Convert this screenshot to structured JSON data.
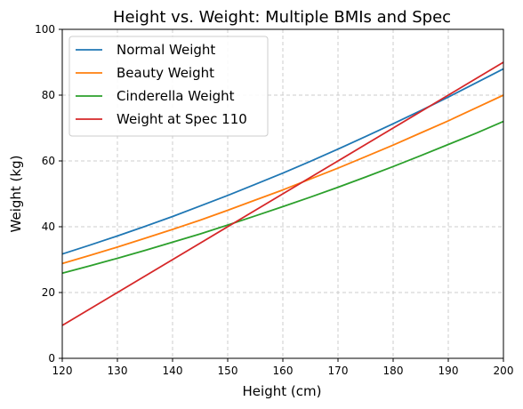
{
  "chart_data": {
    "type": "line",
    "title": "Height vs. Weight: Multiple BMIs and Spec",
    "xlabel": "Height (cm)",
    "ylabel": "Weight (kg)",
    "xlim": [
      120,
      200
    ],
    "ylim": [
      0,
      100
    ],
    "xticks": [
      "120",
      "130",
      "140",
      "150",
      "160",
      "170",
      "180",
      "190",
      "200"
    ],
    "yticks": [
      "0",
      "20",
      "40",
      "60",
      "80",
      "100"
    ],
    "grid": true,
    "legend_position": "top-left",
    "x": [
      120,
      125,
      130,
      135,
      140,
      145,
      150,
      155,
      160,
      165,
      170,
      175,
      180,
      185,
      190,
      195,
      200
    ],
    "series": [
      {
        "name": "Normal Weight",
        "color": "#1f77b4",
        "values": [
          31.7,
          34.4,
          37.2,
          40.1,
          43.1,
          46.3,
          49.5,
          52.9,
          56.3,
          59.9,
          63.6,
          67.4,
          71.3,
          75.3,
          79.4,
          83.7,
          88.0
        ]
      },
      {
        "name": "Beauty Weight",
        "color": "#ff7f0e",
        "values": [
          28.8,
          31.3,
          33.8,
          36.5,
          39.2,
          42.0,
          45.0,
          48.1,
          51.2,
          54.5,
          57.8,
          61.3,
          64.8,
          68.5,
          72.2,
          76.1,
          80.0
        ]
      },
      {
        "name": "Cinderella Weight",
        "color": "#2ca02c",
        "values": [
          25.9,
          28.1,
          30.4,
          32.8,
          35.3,
          37.8,
          40.5,
          43.3,
          46.1,
          49.0,
          52.0,
          55.1,
          58.3,
          61.6,
          65.0,
          68.4,
          72.0
        ]
      },
      {
        "name": "Weight at Spec 110",
        "color": "#d62728",
        "values": [
          10,
          15,
          20,
          25,
          30,
          35,
          40,
          45,
          50,
          55,
          60,
          65,
          70,
          75,
          80,
          85,
          90
        ]
      }
    ]
  }
}
